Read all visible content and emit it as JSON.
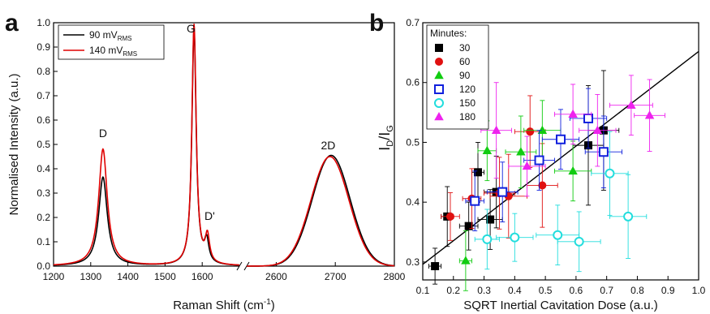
{
  "chart_data": [
    {
      "panel": "a",
      "type": "line",
      "xlabel": "Raman Shift (cm",
      "xlabel_sup": "-1",
      "xlabel_end": ")",
      "ylabel": "Normalised Intensity (a.u.)",
      "broken_x_axis": true,
      "x_segments": [
        {
          "range": [
            1200,
            1700
          ],
          "ticks": [
            1200,
            1300,
            1400,
            1500,
            1600
          ]
        },
        {
          "range": [
            2550,
            2800
          ],
          "ticks": [
            2600,
            2700,
            2800
          ]
        }
      ],
      "ylim": [
        0,
        1.0
      ],
      "yticks": [
        "0.0",
        "0.1",
        "0.2",
        "0.3",
        "0.4",
        "0.5",
        "0.6",
        "0.7",
        "0.8",
        "0.9",
        "1.0"
      ],
      "legend": [
        {
          "label": "90 mV",
          "sub": "RMS",
          "color": "#000000"
        },
        {
          "label": "140 mV",
          "sub": "RMS",
          "color": "#e00000"
        }
      ],
      "peak_labels": [
        {
          "text": "D",
          "x": 1333,
          "y": 0.53
        },
        {
          "text": "G",
          "x": 1570,
          "y": 0.96
        },
        {
          "text": "D'",
          "x": 1620,
          "y": 0.19
        },
        {
          "text": "2D",
          "x": 2688,
          "y": 0.48
        }
      ],
      "series": [
        {
          "name": "90 mV",
          "color": "#000000",
          "peaks": [
            {
              "center": 1333,
              "height": 0.365,
              "width": 14
            },
            {
              "center": 1578,
              "height": 0.97,
              "width": 7
            },
            {
              "center": 1612,
              "height": 0.09,
              "width": 7
            }
          ],
          "peaks_2d": [
            {
              "center": 2693,
              "height": 0.455,
              "width": 32
            }
          ]
        },
        {
          "name": "140 mV",
          "color": "#e00000",
          "peaks": [
            {
              "center": 1333,
              "height": 0.48,
              "width": 14
            },
            {
              "center": 1578,
              "height": 0.99,
              "width": 7
            },
            {
              "center": 1614,
              "height": 0.11,
              "width": 7
            }
          ],
          "peaks_2d": [
            {
              "center": 2691,
              "height": 0.45,
              "width": 32
            }
          ]
        }
      ]
    },
    {
      "panel": "b",
      "type": "scatter",
      "xlabel": "SQRT Inertial Cavitation Dose (a.u.)",
      "ylabel_main": "I",
      "ylabel_sub1": "D",
      "ylabel_mid": "/I",
      "ylabel_sub2": "G",
      "xlim": [
        0.1,
        1.0
      ],
      "ylim": [
        0.27,
        0.7
      ],
      "xticks": [
        "0.1",
        "0.2",
        "0.3",
        "0.4",
        "0.5",
        "0.6",
        "0.7",
        "0.8",
        "0.9",
        "1.0"
      ],
      "yticks": [
        "0.3",
        "0.4",
        "0.5",
        "0.6",
        "0.7"
      ],
      "legend_title": "Minutes:",
      "fit_line": {
        "x": [
          0.1,
          1.0
        ],
        "y": [
          0.296,
          0.652
        ],
        "color": "#000000"
      },
      "series": [
        {
          "name": "30",
          "marker": "square-filled",
          "color": "#000000",
          "points": [
            {
              "x": 0.14,
              "y": 0.293,
              "ex": 0.02,
              "ey": 0.03
            },
            {
              "x": 0.18,
              "y": 0.376,
              "ex": 0.02,
              "ey": 0.05
            },
            {
              "x": 0.25,
              "y": 0.36,
              "ex": 0.03,
              "ey": 0.04
            },
            {
              "x": 0.28,
              "y": 0.45,
              "ex": 0.02,
              "ey": 0.05
            },
            {
              "x": 0.32,
              "y": 0.371,
              "ex": 0.04,
              "ey": 0.05
            },
            {
              "x": 0.34,
              "y": 0.417,
              "ex": 0.04,
              "ey": 0.06
            },
            {
              "x": 0.64,
              "y": 0.495,
              "ex": 0.05,
              "ey": 0.1
            },
            {
              "x": 0.69,
              "y": 0.52,
              "ex": 0.05,
              "ey": 0.1
            }
          ]
        },
        {
          "name": "60",
          "marker": "circle-filled",
          "color": "#e01010",
          "points": [
            {
              "x": 0.19,
              "y": 0.376,
              "ex": 0.03,
              "ey": 0.04
            },
            {
              "x": 0.26,
              "y": 0.406,
              "ex": 0.03,
              "ey": 0.05
            },
            {
              "x": 0.35,
              "y": 0.415,
              "ex": 0.05,
              "ey": 0.06
            },
            {
              "x": 0.38,
              "y": 0.41,
              "ex": 0.06,
              "ey": 0.07
            },
            {
              "x": 0.45,
              "y": 0.518,
              "ex": 0.05,
              "ey": 0.06
            },
            {
              "x": 0.49,
              "y": 0.428,
              "ex": 0.05,
              "ey": 0.07
            }
          ]
        },
        {
          "name": "90",
          "marker": "triangle-filled",
          "color": "#11cc11",
          "points": [
            {
              "x": 0.24,
              "y": 0.302,
              "ex": 0.02,
              "ey": 0.05
            },
            {
              "x": 0.31,
              "y": 0.486,
              "ex": 0.03,
              "ey": 0.05
            },
            {
              "x": 0.42,
              "y": 0.484,
              "ex": 0.05,
              "ey": 0.06
            },
            {
              "x": 0.49,
              "y": 0.52,
              "ex": 0.06,
              "ey": 0.05
            },
            {
              "x": 0.59,
              "y": 0.452,
              "ex": 0.06,
              "ey": 0.05
            }
          ]
        },
        {
          "name": "120",
          "marker": "square-open",
          "color": "#1020dd",
          "points": [
            {
              "x": 0.27,
              "y": 0.402,
              "ex": 0.03,
              "ey": 0.05
            },
            {
              "x": 0.36,
              "y": 0.417,
              "ex": 0.05,
              "ey": 0.05
            },
            {
              "x": 0.48,
              "y": 0.47,
              "ex": 0.05,
              "ey": 0.05
            },
            {
              "x": 0.55,
              "y": 0.505,
              "ex": 0.06,
              "ey": 0.05
            },
            {
              "x": 0.64,
              "y": 0.54,
              "ex": 0.06,
              "ey": 0.05
            },
            {
              "x": 0.69,
              "y": 0.484,
              "ex": 0.06,
              "ey": 0.06
            }
          ]
        },
        {
          "name": "150",
          "marker": "circle-open",
          "color": "#22dddd",
          "points": [
            {
              "x": 0.31,
              "y": 0.338,
              "ex": 0.04,
              "ey": 0.05
            },
            {
              "x": 0.4,
              "y": 0.341,
              "ex": 0.06,
              "ey": 0.04
            },
            {
              "x": 0.54,
              "y": 0.345,
              "ex": 0.07,
              "ey": 0.05
            },
            {
              "x": 0.61,
              "y": 0.334,
              "ex": 0.07,
              "ey": 0.05
            },
            {
              "x": 0.71,
              "y": 0.448,
              "ex": 0.06,
              "ey": 0.07
            },
            {
              "x": 0.77,
              "y": 0.376,
              "ex": 0.06,
              "ey": 0.07
            }
          ]
        },
        {
          "name": "180",
          "marker": "triangle-filled",
          "color": "#ee22ee",
          "points": [
            {
              "x": 0.34,
              "y": 0.52,
              "ex": 0.05,
              "ey": 0.08
            },
            {
              "x": 0.44,
              "y": 0.46,
              "ex": 0.06,
              "ey": 0.05
            },
            {
              "x": 0.59,
              "y": 0.547,
              "ex": 0.06,
              "ey": 0.05
            },
            {
              "x": 0.67,
              "y": 0.52,
              "ex": 0.06,
              "ey": 0.06
            },
            {
              "x": 0.78,
              "y": 0.562,
              "ex": 0.07,
              "ey": 0.05
            },
            {
              "x": 0.84,
              "y": 0.545,
              "ex": 0.05,
              "ey": 0.06
            }
          ]
        }
      ]
    }
  ]
}
